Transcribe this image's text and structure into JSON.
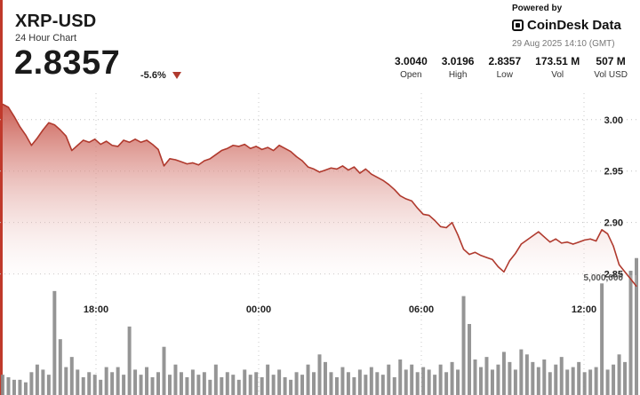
{
  "header": {
    "title": "XRP-USD",
    "subtitle": "24 Hour Chart",
    "price": "2.8357",
    "change": "-5.6%",
    "powered_by": "Powered by",
    "brand": "CoinDesk Data",
    "date": "29 Aug 2025 14:10 (GMT)"
  },
  "stats": [
    {
      "value": "3.0040",
      "label": "Open"
    },
    {
      "value": "3.0196",
      "label": "High"
    },
    {
      "value": "2.8357",
      "label": "Low"
    },
    {
      "value": "173.51 M",
      "label": "Vol"
    },
    {
      "value": "507 M",
      "label": "Vol USD"
    }
  ],
  "colors": {
    "accent": "#c0392b",
    "line": "#b03a2e",
    "area_top": "#c8554a",
    "volume_bar": "#8a8a8a"
  },
  "chart_data": {
    "type": "area",
    "title": "XRP-USD",
    "ylim": [
      2.81,
      3.03
    ],
    "y_ticks": [
      3.0,
      2.95,
      2.9,
      2.85
    ],
    "y_tick_labels": [
      "3.00",
      "2.95",
      "2.90",
      "2.85"
    ],
    "x_ticks": [
      "18:00",
      "00:00",
      "06:00",
      "12:00"
    ],
    "volume_tick_label": "5,000,000",
    "price": [
      3.015,
      3.012,
      3.003,
      2.993,
      2.985,
      2.975,
      2.982,
      2.99,
      2.997,
      2.995,
      2.99,
      2.984,
      2.97,
      2.975,
      2.98,
      2.978,
      2.981,
      2.976,
      2.979,
      2.975,
      2.974,
      2.98,
      2.978,
      2.981,
      2.978,
      2.98,
      2.976,
      2.971,
      2.955,
      2.962,
      2.961,
      2.959,
      2.957,
      2.958,
      2.956,
      2.96,
      2.962,
      2.966,
      2.97,
      2.972,
      2.975,
      2.974,
      2.976,
      2.972,
      2.974,
      2.971,
      2.973,
      2.97,
      2.975,
      2.972,
      2.969,
      2.964,
      2.96,
      2.954,
      2.952,
      2.949,
      2.951,
      2.953,
      2.952,
      2.955,
      2.951,
      2.954,
      2.948,
      2.952,
      2.947,
      2.944,
      2.941,
      2.937,
      2.932,
      2.926,
      2.923,
      2.921,
      2.914,
      2.908,
      2.907,
      2.902,
      2.896,
      2.895,
      2.9,
      2.888,
      2.874,
      2.869,
      2.871,
      2.868,
      2.866,
      2.864,
      2.857,
      2.852,
      2.863,
      2.87,
      2.879,
      2.883,
      2.887,
      2.891,
      2.886,
      2.881,
      2.884,
      2.88,
      2.881,
      2.879,
      2.881,
      2.883,
      2.884,
      2.882,
      2.893,
      2.889,
      2.877,
      2.859,
      2.852,
      2.845,
      2.838
    ],
    "volume": [
      0.8,
      0.7,
      0.6,
      0.6,
      0.5,
      0.9,
      1.2,
      1.0,
      0.8,
      4.1,
      2.2,
      1.1,
      1.5,
      1.0,
      0.7,
      0.9,
      0.8,
      0.6,
      1.1,
      0.9,
      1.1,
      0.8,
      2.7,
      1.0,
      0.8,
      1.1,
      0.7,
      0.9,
      1.9,
      0.8,
      1.2,
      0.9,
      0.7,
      1.0,
      0.8,
      0.9,
      0.6,
      1.2,
      0.7,
      0.9,
      0.8,
      0.6,
      1.0,
      0.8,
      0.9,
      0.7,
      1.2,
      0.8,
      1.0,
      0.7,
      0.6,
      0.9,
      0.8,
      1.2,
      0.9,
      1.6,
      1.3,
      0.9,
      0.7,
      1.1,
      0.9,
      0.7,
      1.0,
      0.8,
      1.1,
      0.9,
      0.8,
      1.2,
      0.7,
      1.4,
      1.0,
      1.2,
      0.9,
      1.1,
      1.0,
      0.8,
      1.2,
      0.9,
      1.3,
      1.0,
      3.9,
      2.8,
      1.4,
      1.1,
      1.5,
      1.0,
      1.2,
      1.7,
      1.3,
      1.0,
      1.8,
      1.6,
      1.3,
      1.1,
      1.4,
      0.9,
      1.2,
      1.5,
      1.0,
      1.1,
      1.3,
      0.9,
      1.0,
      1.1,
      4.4,
      1.0,
      1.2,
      1.6,
      1.3,
      4.9,
      5.4
    ]
  }
}
